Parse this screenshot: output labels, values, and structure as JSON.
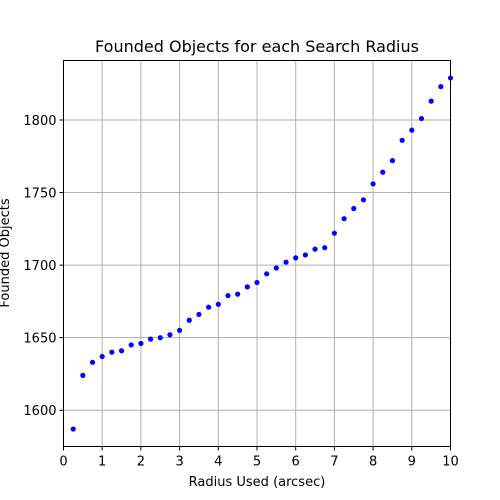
{
  "chart_data": {
    "type": "scatter",
    "title": "Founded Objects for each Search Radius",
    "xlabel": "Radius Used (arcsec)",
    "ylabel": "Founded Objects",
    "xlim": [
      0,
      10
    ],
    "ylim": [
      1575,
      1841
    ],
    "xticks": [
      0,
      1,
      2,
      3,
      4,
      5,
      6,
      7,
      8,
      9,
      10
    ],
    "yticks": [
      1600,
      1650,
      1700,
      1750,
      1800
    ],
    "grid": true,
    "marker_color": "#0000ff",
    "series": [
      {
        "x": [
          0.25,
          0.5,
          0.75,
          1.0,
          1.25,
          1.5,
          1.75,
          2.0,
          2.25,
          2.5,
          2.75,
          3.0,
          3.25,
          3.5,
          3.75,
          4.0,
          4.25,
          4.5,
          4.75,
          5.0,
          5.25,
          5.5,
          5.75,
          6.0,
          6.25,
          6.5,
          6.75,
          7.0,
          7.25,
          7.5,
          7.75,
          8.0,
          8.25,
          8.5,
          8.75,
          9.0,
          9.25,
          9.5,
          9.75,
          10.0
        ],
        "y": [
          1587,
          1624,
          1633,
          1637,
          1640,
          1641,
          1645,
          1646,
          1649,
          1650,
          1652,
          1655,
          1662,
          1666,
          1671,
          1673,
          1679,
          1680,
          1685,
          1688,
          1694,
          1698,
          1702,
          1705,
          1707,
          1711,
          1712,
          1722,
          1732,
          1739,
          1745,
          1756,
          1764,
          1772,
          1786,
          1793,
          1801,
          1813,
          1823,
          1829
        ]
      }
    ]
  }
}
